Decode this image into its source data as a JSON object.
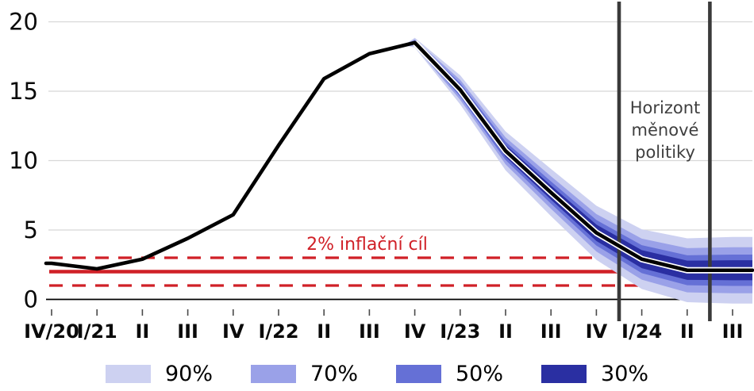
{
  "annotations": {
    "target_label": "2% inflační cíl",
    "horizon_lines": [
      "Horizont",
      "měnové",
      "politiky"
    ]
  },
  "colors": {
    "red": "#d02027",
    "grid": "#d8d8d8",
    "axis": "#000000",
    "line": "#000000",
    "line_casing": "#ffffff",
    "horizon_line": "#3a3a3a",
    "horizon_text": "#3f3f3f",
    "tick": "#4a4a4a",
    "label_text": "#0a0a0a"
  },
  "chart_data": {
    "type": "line",
    "subtype": "fan-chart",
    "title": "",
    "unit": "%",
    "categories": [
      "IV/20",
      "I/21",
      "II",
      "III",
      "IV",
      "I/22",
      "II",
      "III",
      "IV",
      "I/23",
      "II",
      "III",
      "IV",
      "I/24",
      "II",
      "III"
    ],
    "values": [
      2.6,
      2.2,
      2.9,
      4.4,
      6.1,
      11.1,
      15.9,
      17.7,
      18.5,
      15.1,
      10.7,
      7.7,
      4.8,
      2.9,
      2.1,
      2.1
    ],
    "forecast_start_index": 8,
    "bands": [
      {
        "label": "90%",
        "color": "#cdd1f1",
        "half_widths": [
          0.35,
          1.05,
          1.4,
          1.7,
          1.95,
          2.15,
          2.3,
          2.4
        ]
      },
      {
        "label": "70%",
        "color": "#9aa1e8",
        "half_widths": [
          0.24,
          0.72,
          0.97,
          1.17,
          1.35,
          1.48,
          1.59,
          1.66
        ]
      },
      {
        "label": "50%",
        "color": "#6570d6",
        "half_widths": [
          0.16,
          0.49,
          0.66,
          0.8,
          0.92,
          1.01,
          1.08,
          1.13
        ]
      },
      {
        "label": "30%",
        "color": "#2a2fa2",
        "half_widths": [
          0.1,
          0.32,
          0.42,
          0.51,
          0.59,
          0.65,
          0.69,
          0.72
        ]
      }
    ],
    "reference_lines": {
      "target": 2,
      "upper": 3,
      "lower": 1
    },
    "policy_horizon_span_indices": [
      12.5,
      14.5
    ],
    "yticks": [
      0,
      5,
      10,
      15,
      20
    ],
    "ylim": [
      0,
      20
    ],
    "grid": true,
    "legend_position": "bottom"
  }
}
